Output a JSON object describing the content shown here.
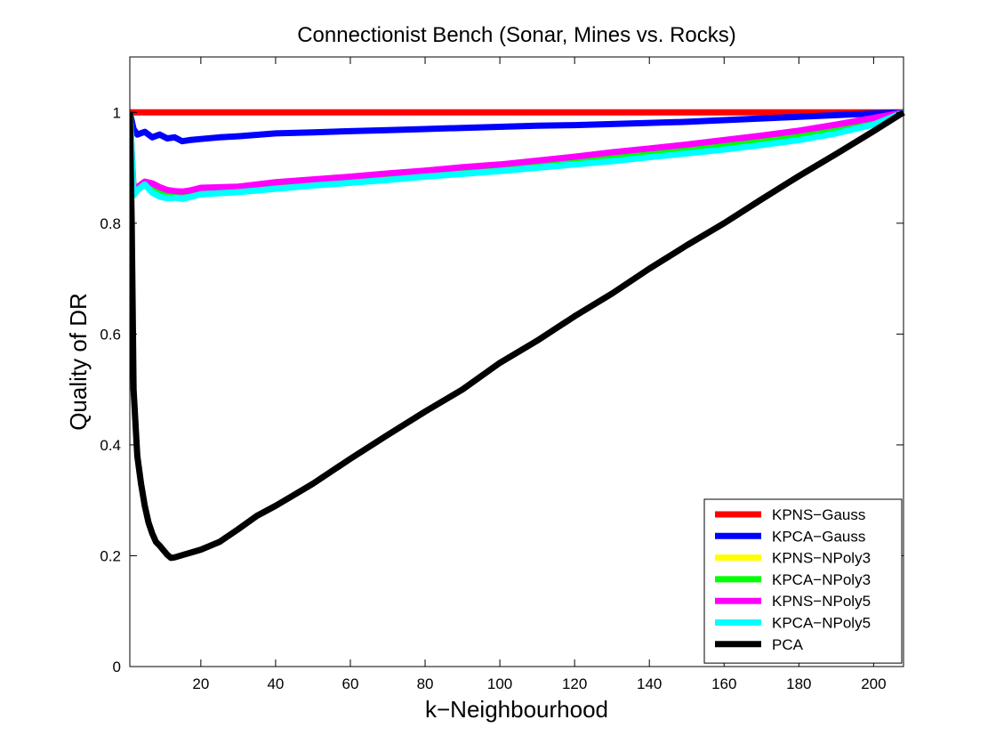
{
  "chart_data": {
    "type": "line",
    "title": "Connectionist Bench (Sonar, Mines vs. Rocks)",
    "xlabel": "k−Neighbourhood",
    "ylabel": "Quality of DR",
    "xlim": [
      1,
      208
    ],
    "ylim": [
      0,
      1.1
    ],
    "x_ticks": [
      20,
      40,
      60,
      80,
      100,
      120,
      140,
      160,
      180,
      200
    ],
    "x_tick_labels": [
      "20",
      "40",
      "60",
      "80",
      "100",
      "120",
      "140",
      "160",
      "180",
      "200"
    ],
    "y_ticks": [
      0,
      0.2,
      0.4,
      0.6,
      0.8,
      1
    ],
    "y_tick_labels": [
      "0",
      "0.2",
      "0.4",
      "0.6",
      "0.8",
      "1"
    ],
    "grid": false,
    "legend_position": "bottom-right",
    "series": [
      {
        "name": "KPNS−Gauss",
        "color": "#ff0000",
        "points": [
          [
            1,
            1.0
          ],
          [
            208,
            1.0
          ]
        ]
      },
      {
        "name": "KPCA−Gauss",
        "color": "#0000ff",
        "points": [
          [
            1,
            1.0
          ],
          [
            2,
            0.97
          ],
          [
            3,
            0.96
          ],
          [
            5,
            0.965
          ],
          [
            7,
            0.955
          ],
          [
            9,
            0.96
          ],
          [
            11,
            0.953
          ],
          [
            13,
            0.955
          ],
          [
            15,
            0.948
          ],
          [
            17,
            0.95
          ],
          [
            20,
            0.952
          ],
          [
            25,
            0.955
          ],
          [
            30,
            0.957
          ],
          [
            40,
            0.962
          ],
          [
            50,
            0.964
          ],
          [
            60,
            0.966
          ],
          [
            70,
            0.968
          ],
          [
            80,
            0.97
          ],
          [
            90,
            0.972
          ],
          [
            100,
            0.974
          ],
          [
            110,
            0.976
          ],
          [
            120,
            0.977
          ],
          [
            130,
            0.979
          ],
          [
            140,
            0.981
          ],
          [
            150,
            0.983
          ],
          [
            160,
            0.986
          ],
          [
            170,
            0.989
          ],
          [
            180,
            0.992
          ],
          [
            190,
            0.995
          ],
          [
            200,
            0.998
          ],
          [
            208,
            1.0
          ]
        ]
      },
      {
        "name": "KPNS−NPoly3",
        "color": "#ffff00",
        "points": [
          [
            1,
            1.0
          ],
          [
            2,
            0.86
          ],
          [
            3,
            0.86
          ],
          [
            5,
            0.87
          ],
          [
            7,
            0.865
          ],
          [
            9,
            0.86
          ],
          [
            11,
            0.855
          ],
          [
            13,
            0.855
          ],
          [
            15,
            0.853
          ],
          [
            17,
            0.855
          ],
          [
            20,
            0.86
          ],
          [
            30,
            0.865
          ],
          [
            40,
            0.871
          ],
          [
            50,
            0.876
          ],
          [
            60,
            0.881
          ],
          [
            70,
            0.886
          ],
          [
            80,
            0.891
          ],
          [
            90,
            0.896
          ],
          [
            100,
            0.901
          ],
          [
            110,
            0.906
          ],
          [
            120,
            0.912
          ],
          [
            130,
            0.918
          ],
          [
            140,
            0.925
          ],
          [
            150,
            0.932
          ],
          [
            160,
            0.94
          ],
          [
            170,
            0.948
          ],
          [
            180,
            0.957
          ],
          [
            190,
            0.969
          ],
          [
            200,
            0.983
          ],
          [
            208,
            1.0
          ]
        ]
      },
      {
        "name": "KPCA−NPoly3",
        "color": "#00ff00",
        "points": [
          [
            1,
            1.0
          ],
          [
            2,
            0.86
          ],
          [
            3,
            0.86
          ],
          [
            5,
            0.87
          ],
          [
            7,
            0.865
          ],
          [
            9,
            0.86
          ],
          [
            11,
            0.855
          ],
          [
            13,
            0.855
          ],
          [
            15,
            0.853
          ],
          [
            17,
            0.855
          ],
          [
            20,
            0.86
          ],
          [
            30,
            0.865
          ],
          [
            40,
            0.871
          ],
          [
            50,
            0.876
          ],
          [
            60,
            0.881
          ],
          [
            70,
            0.886
          ],
          [
            80,
            0.891
          ],
          [
            90,
            0.896
          ],
          [
            100,
            0.901
          ],
          [
            110,
            0.906
          ],
          [
            120,
            0.912
          ],
          [
            130,
            0.918
          ],
          [
            140,
            0.925
          ],
          [
            150,
            0.932
          ],
          [
            160,
            0.94
          ],
          [
            170,
            0.948
          ],
          [
            180,
            0.957
          ],
          [
            190,
            0.969
          ],
          [
            200,
            0.983
          ],
          [
            208,
            1.0
          ]
        ]
      },
      {
        "name": "KPNS−NPoly5",
        "color": "#ff00ff",
        "points": [
          [
            1,
            1.0
          ],
          [
            2,
            0.86
          ],
          [
            3,
            0.865
          ],
          [
            5,
            0.875
          ],
          [
            7,
            0.872
          ],
          [
            9,
            0.865
          ],
          [
            11,
            0.86
          ],
          [
            13,
            0.858
          ],
          [
            15,
            0.857
          ],
          [
            17,
            0.859
          ],
          [
            20,
            0.864
          ],
          [
            30,
            0.866
          ],
          [
            40,
            0.874
          ],
          [
            50,
            0.879
          ],
          [
            60,
            0.884
          ],
          [
            70,
            0.89
          ],
          [
            80,
            0.895
          ],
          [
            90,
            0.901
          ],
          [
            100,
            0.906
          ],
          [
            110,
            0.913
          ],
          [
            120,
            0.92
          ],
          [
            130,
            0.928
          ],
          [
            140,
            0.935
          ],
          [
            150,
            0.942
          ],
          [
            160,
            0.95
          ],
          [
            170,
            0.958
          ],
          [
            180,
            0.967
          ],
          [
            190,
            0.978
          ],
          [
            200,
            0.99
          ],
          [
            208,
            1.0
          ]
        ]
      },
      {
        "name": "KPCA−NPoly5",
        "color": "#00ffff",
        "points": [
          [
            1,
            1.0
          ],
          [
            2,
            0.85
          ],
          [
            3,
            0.86
          ],
          [
            5,
            0.87
          ],
          [
            7,
            0.855
          ],
          [
            9,
            0.848
          ],
          [
            11,
            0.845
          ],
          [
            13,
            0.846
          ],
          [
            15,
            0.844
          ],
          [
            17,
            0.847
          ],
          [
            20,
            0.852
          ],
          [
            30,
            0.856
          ],
          [
            40,
            0.862
          ],
          [
            50,
            0.868
          ],
          [
            60,
            0.873
          ],
          [
            70,
            0.878
          ],
          [
            80,
            0.884
          ],
          [
            90,
            0.889
          ],
          [
            100,
            0.894
          ],
          [
            110,
            0.9
          ],
          [
            120,
            0.906
          ],
          [
            130,
            0.912
          ],
          [
            140,
            0.919
          ],
          [
            150,
            0.926
          ],
          [
            160,
            0.933
          ],
          [
            170,
            0.941
          ],
          [
            180,
            0.95
          ],
          [
            190,
            0.962
          ],
          [
            200,
            0.978
          ],
          [
            208,
            1.0
          ]
        ]
      },
      {
        "name": "PCA",
        "color": "#000000",
        "points": [
          [
            1,
            1.0
          ],
          [
            1.5,
            0.8
          ],
          [
            2,
            0.5
          ],
          [
            3,
            0.38
          ],
          [
            4,
            0.33
          ],
          [
            5,
            0.29
          ],
          [
            6,
            0.26
          ],
          [
            7,
            0.24
          ],
          [
            8,
            0.225
          ],
          [
            9,
            0.218
          ],
          [
            10,
            0.21
          ],
          [
            11,
            0.202
          ],
          [
            12,
            0.196
          ],
          [
            13,
            0.197
          ],
          [
            15,
            0.201
          ],
          [
            18,
            0.207
          ],
          [
            20,
            0.211
          ],
          [
            25,
            0.225
          ],
          [
            30,
            0.248
          ],
          [
            35,
            0.272
          ],
          [
            40,
            0.29
          ],
          [
            45,
            0.31
          ],
          [
            50,
            0.33
          ],
          [
            60,
            0.375
          ],
          [
            70,
            0.418
          ],
          [
            80,
            0.46
          ],
          [
            90,
            0.5
          ],
          [
            100,
            0.548
          ],
          [
            110,
            0.588
          ],
          [
            120,
            0.632
          ],
          [
            130,
            0.673
          ],
          [
            140,
            0.718
          ],
          [
            150,
            0.76
          ],
          [
            160,
            0.8
          ],
          [
            170,
            0.843
          ],
          [
            180,
            0.885
          ],
          [
            190,
            0.925
          ],
          [
            200,
            0.966
          ],
          [
            208,
            1.0
          ]
        ]
      }
    ]
  }
}
